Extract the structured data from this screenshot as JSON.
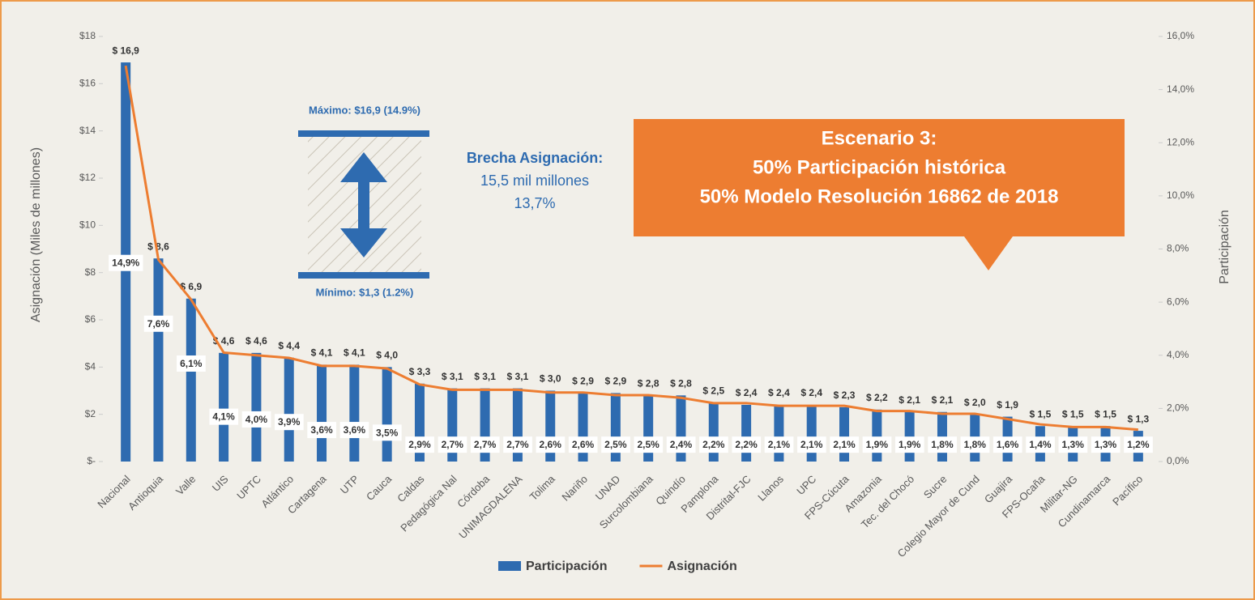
{
  "chart_data": {
    "type": "bar_line",
    "annotations": {
      "max": "Máximo: $16,9 (14.9%)",
      "min": "Mínimo: $1,3 (1.2%)",
      "gap_title": "Brecha Asignación:",
      "gap_amount": "15,5 mil millones",
      "gap_pct": "13,7%",
      "callout": [
        "Escenario 3:",
        "50% Participación histórica",
        "50% Modelo Resolución 16862 de 2018"
      ]
    },
    "y_label": "Asignación (Miles de millones)",
    "y2_label": "Participación",
    "categories": [
      "Nacional",
      "Antioquia",
      "Valle",
      "UIS",
      "UPTC",
      "Atlántico",
      "Cartagena",
      "UTP",
      "Cauca",
      "Caldas",
      "Pedagógica Nal",
      "Córdoba",
      "UNIMAGDALENA",
      "Tolima",
      "Nariño",
      "UNAD",
      "Surcolombiana",
      "Quindío",
      "Pamplona",
      "Distrital-FJC",
      "Llanos",
      "UPC",
      "FPS-Cúcuta",
      "Amazonia",
      "Tec. del Chocó",
      "Sucre",
      "Colegio Mayor de Cund",
      "Guajira",
      "FPS-Ocaña",
      "Militar-NG",
      "Cundinamarca",
      "Pacífico"
    ],
    "series": [
      {
        "name": "Participación",
        "color": "#2e6bb0",
        "type": "bar",
        "values": [
          16.9,
          8.6,
          6.9,
          4.6,
          4.6,
          4.4,
          4.1,
          4.1,
          4.0,
          3.3,
          3.1,
          3.1,
          3.1,
          3.0,
          2.9,
          2.9,
          2.8,
          2.8,
          2.5,
          2.4,
          2.4,
          2.4,
          2.3,
          2.2,
          2.1,
          2.1,
          2.0,
          1.9,
          1.5,
          1.5,
          1.5,
          1.3
        ],
        "value_labels": [
          "$ 16,9",
          "$ 8,6",
          "$ 6,9",
          "$ 4,6",
          "$ 4,6",
          "$ 4,4",
          "$ 4,1",
          "$ 4,1",
          "$ 4,0",
          "$ 3,3",
          "$ 3,1",
          "$ 3,1",
          "$ 3,1",
          "$ 3,0",
          "$ 2,9",
          "$ 2,9",
          "$ 2,8",
          "$ 2,8",
          "$ 2,5",
          "$ 2,4",
          "$ 2,4",
          "$ 2,4",
          "$ 2,3",
          "$ 2,2",
          "$ 2,1",
          "$ 2,1",
          "$ 2,0",
          "$ 1,9",
          "$ 1,5",
          "$ 1,5",
          "$ 1,5",
          "$ 1,3"
        ]
      },
      {
        "name": "Asignación",
        "color": "#ed7d31",
        "type": "line",
        "axis": "y2",
        "values": [
          14.9,
          7.6,
          6.1,
          4.1,
          4.0,
          3.9,
          3.6,
          3.6,
          3.5,
          2.9,
          2.7,
          2.7,
          2.7,
          2.6,
          2.6,
          2.5,
          2.5,
          2.4,
          2.2,
          2.2,
          2.1,
          2.1,
          2.1,
          1.9,
          1.9,
          1.8,
          1.8,
          1.6,
          1.4,
          1.3,
          1.3,
          1.2
        ],
        "value_labels": [
          "14,9%",
          "7,6%",
          "6,1%",
          "4,1%",
          "4,0%",
          "3,9%",
          "3,6%",
          "3,6%",
          "3,5%",
          "2,9%",
          "2,7%",
          "2,7%",
          "2,7%",
          "2,6%",
          "2,6%",
          "2,5%",
          "2,5%",
          "2,4%",
          "2,2%",
          "2,2%",
          "2,1%",
          "2,1%",
          "2,1%",
          "1,9%",
          "1,9%",
          "1,8%",
          "1,8%",
          "1,6%",
          "1,4%",
          "1,3%",
          "1,3%",
          "1,2%"
        ]
      }
    ],
    "ylim": [
      0,
      18
    ],
    "yticks": [
      {
        "value": 0,
        "label": "$-"
      },
      {
        "value": 2,
        "label": "$2"
      },
      {
        "value": 4,
        "label": "$4"
      },
      {
        "value": 6,
        "label": "$6"
      },
      {
        "value": 8,
        "label": "$8"
      },
      {
        "value": 10,
        "label": "$10"
      },
      {
        "value": 12,
        "label": "$12"
      },
      {
        "value": 14,
        "label": "$14"
      },
      {
        "value": 16,
        "label": "$16"
      },
      {
        "value": 18,
        "label": "$18"
      }
    ],
    "y2lim": [
      0,
      16
    ],
    "y2ticks": [
      {
        "value": 0,
        "label": "0,0%"
      },
      {
        "value": 2,
        "label": "2,0%"
      },
      {
        "value": 4,
        "label": "4,0%"
      },
      {
        "value": 6,
        "label": "6,0%"
      },
      {
        "value": 8,
        "label": "8,0%"
      },
      {
        "value": 10,
        "label": "10,0%"
      },
      {
        "value": 12,
        "label": "12,0%"
      },
      {
        "value": 14,
        "label": "14,0%"
      },
      {
        "value": 16,
        "label": "16,0%"
      }
    ],
    "legend": "bottom"
  }
}
